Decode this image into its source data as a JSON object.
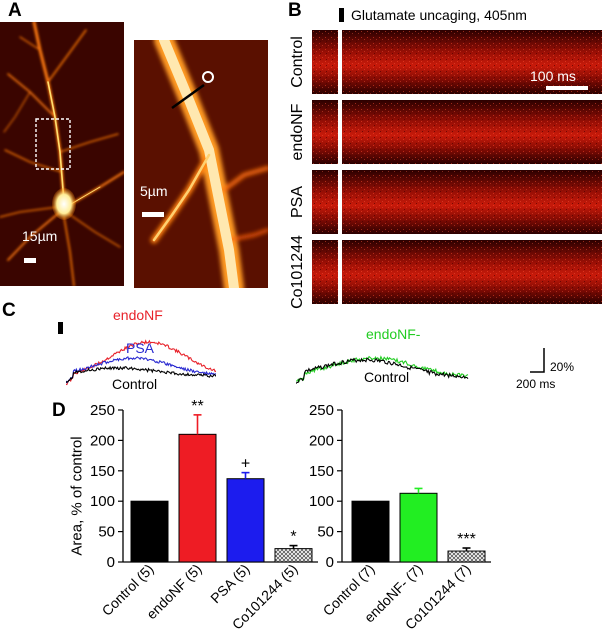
{
  "panels": {
    "A": {
      "letter": "A",
      "scale_bar_large": "15µm",
      "scale_bar_small": "5µm"
    },
    "B": {
      "letter": "B",
      "stimulus_label": "Glutamate uncaging, 405nm",
      "time_scale": "100 ms",
      "rows": [
        "Control",
        "endoNF",
        "PSA",
        "Co101244"
      ]
    },
    "C": {
      "letter": "C",
      "left_labels": {
        "endoNF": "endoNF",
        "PSA": "PSA",
        "Control": "Control"
      },
      "right_labels": {
        "endoNF_minus": "endoNF-",
        "Control": "Control"
      },
      "scale_y": "20%",
      "scale_x": "200 ms",
      "colors": {
        "endoNF": "#e8222a",
        "PSA": "#2a2ad0",
        "Control": "#000000",
        "endoNF_minus": "#22cc22"
      }
    },
    "D": {
      "letter": "D"
    }
  },
  "chart_data": [
    {
      "type": "bar",
      "ylabel": "Area, % of control",
      "ylim": [
        0,
        250
      ],
      "yticks": [
        0,
        50,
        100,
        150,
        200,
        250
      ],
      "categories": [
        "Control (5)",
        "endoNF (5)",
        "PSA (5)",
        "Co101244 (5)"
      ],
      "values": [
        100,
        210,
        137,
        22
      ],
      "errors": [
        0,
        32,
        10,
        5
      ],
      "annotations": [
        "",
        "**",
        "+",
        "*"
      ],
      "colors": [
        "#000000",
        "#ee1c24",
        "#1c1cee",
        "hatched"
      ]
    },
    {
      "type": "bar",
      "ylabel": "",
      "ylim": [
        0,
        250
      ],
      "yticks": [
        0,
        50,
        100,
        150,
        200,
        250
      ],
      "categories": [
        "Control (7)",
        "endoNF- (7)",
        "Co101244 (7)"
      ],
      "values": [
        100,
        113,
        18
      ],
      "errors": [
        0,
        8,
        5
      ],
      "annotations": [
        "",
        "",
        "***"
      ],
      "colors": [
        "#000000",
        "#22ee22",
        "hatched"
      ]
    }
  ]
}
